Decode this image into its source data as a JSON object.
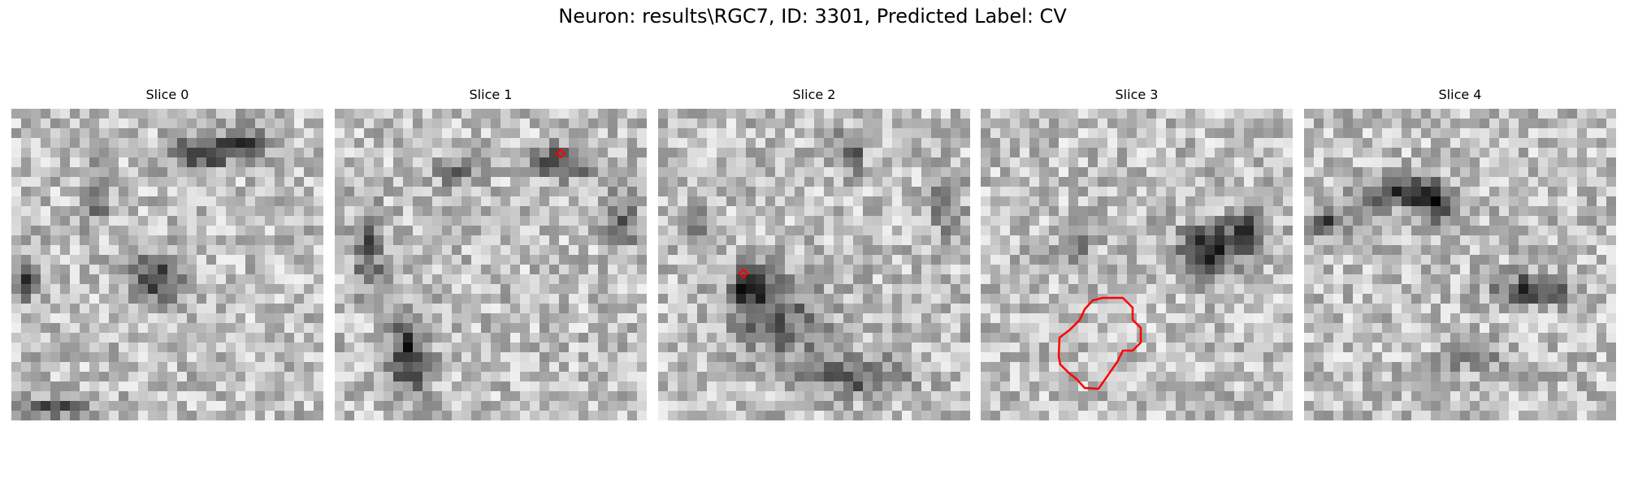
{
  "figure": {
    "title": "Neuron: results\\RGC7, ID: 3301, Predicted Label: CV"
  },
  "slices": [
    {
      "title": "Slice 0",
      "seed": 11,
      "marker": null
    },
    {
      "title": "Slice 1",
      "seed": 23,
      "marker": "small-diamond"
    },
    {
      "title": "Slice 2",
      "seed": 37,
      "marker": "small-diamond"
    },
    {
      "title": "Slice 3",
      "seed": 51,
      "marker": "octagon-contour"
    },
    {
      "title": "Slice 4",
      "seed": 67,
      "marker": null
    }
  ],
  "colors": {
    "contour": "#ff0000",
    "background": "#ffffff",
    "text": "#000000"
  }
}
